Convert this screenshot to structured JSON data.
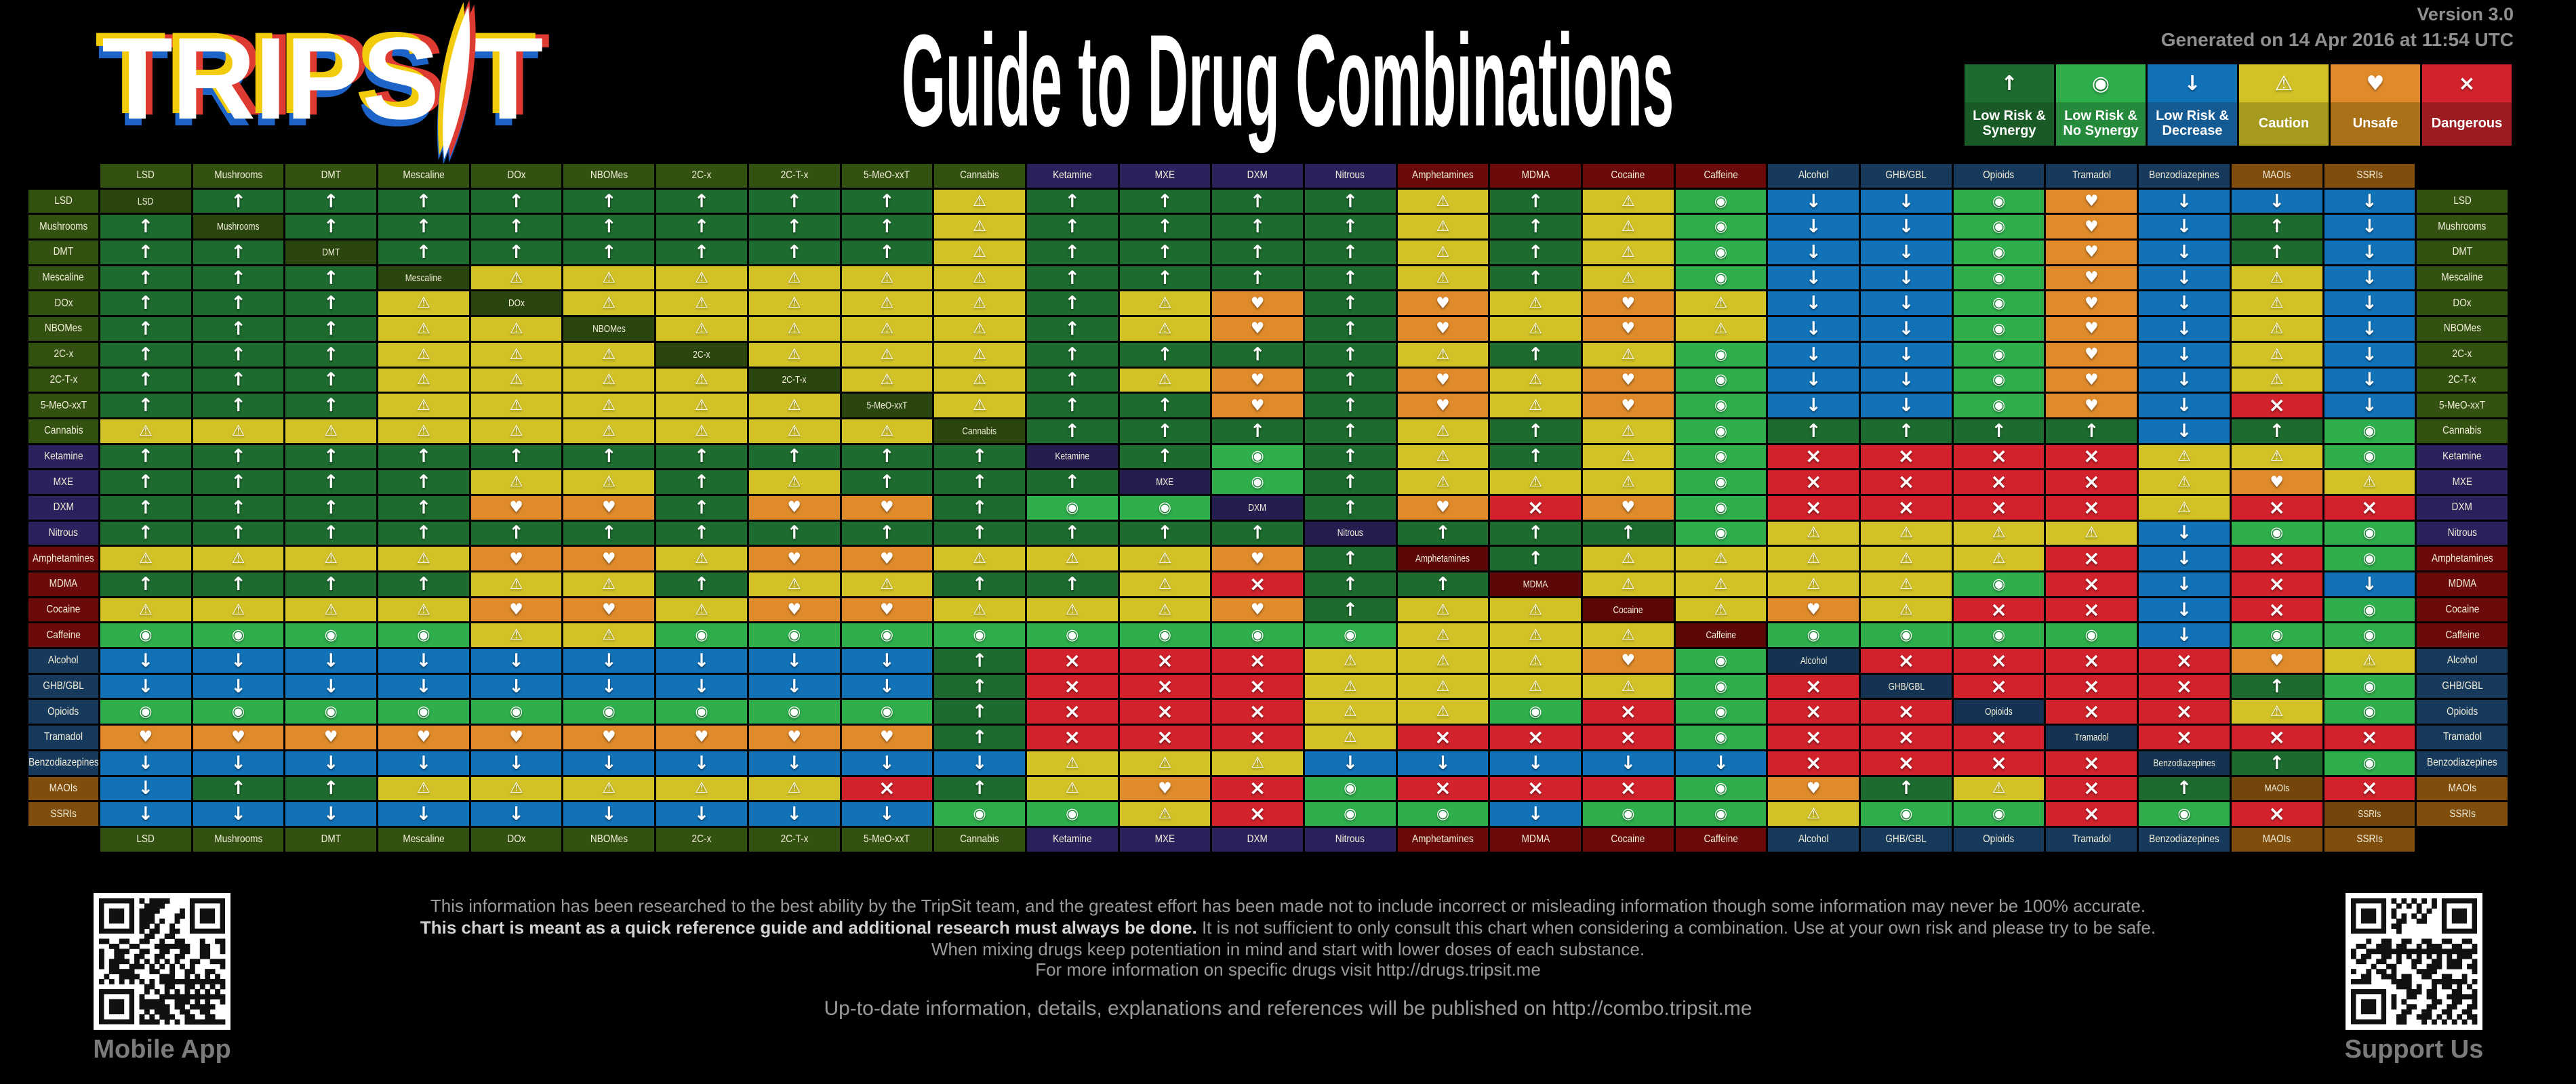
{
  "header": {
    "logo_left": "TRIPS",
    "logo_last": "T",
    "title": "Guide to Drug Combinations",
    "version": "Version 3.0",
    "generated": "Generated on 14 Apr 2016 at 11:54 UTC"
  },
  "statuses": {
    "S": {
      "name": "Low Risk & Synergy",
      "symbol": "↑",
      "color": "#1E6B2F",
      "legend_label_bg": "#1A5A27"
    },
    "N": {
      "name": "Low Risk & No Synergy",
      "symbol": "◉",
      "color": "#2FAE4C",
      "legend_label_bg": "#268A3C"
    },
    "D": {
      "name": "Low Risk & Decrease",
      "symbol": "↓",
      "color": "#1272B8",
      "legend_label_bg": "#155B93"
    },
    "C": {
      "name": "Caution",
      "symbol": "⚠",
      "color": "#D2C228",
      "legend_label_bg": "#A79B1F"
    },
    "U": {
      "name": "Unsafe",
      "symbol": "♥",
      "color": "#DF8A2B",
      "legend_label_bg": "#AA7119"
    },
    "X": {
      "name": "Dangerous",
      "symbol": "×",
      "color": "#D2232D",
      "legend_label_bg": "#9C1C22"
    }
  },
  "category_colors": {
    "psy": {
      "header": "#335110",
      "self": "#2A450E"
    },
    "dis": {
      "header": "#2B215C",
      "self": "#251C4F"
    },
    "stim": {
      "header": "#6B0A0B",
      "self": "#5C0708"
    },
    "dep": {
      "header": "#173A5C",
      "self": "#143352"
    },
    "ser": {
      "header": "#7F4D0C",
      "self": "#74460B"
    }
  },
  "chart_data": {
    "type": "heatmap",
    "title": "Guide to Drug Combinations",
    "legend_order": [
      "S",
      "N",
      "D",
      "C",
      "U",
      "X"
    ],
    "cell_codes": {
      "S": "Low Risk & Synergy",
      "N": "Low Risk & No Synergy",
      "D": "Low Risk & Decrease",
      "C": "Caution",
      "U": "Unsafe",
      "X": "Dangerous",
      "=": "self"
    },
    "drugs": [
      "LSD",
      "Mushrooms",
      "DMT",
      "Mescaline",
      "DOx",
      "NBOMes",
      "2C-x",
      "2C-T-x",
      "5-MeO-xxT",
      "Cannabis",
      "Ketamine",
      "MXE",
      "DXM",
      "Nitrous",
      "Amphetamines",
      "MDMA",
      "Cocaine",
      "Caffeine",
      "Alcohol",
      "GHB/GBL",
      "Opioids",
      "Tramadol",
      "Benzodiazepines",
      "MAOIs",
      "SSRIs"
    ],
    "category_by_drug": [
      "psy",
      "psy",
      "psy",
      "psy",
      "psy",
      "psy",
      "psy",
      "psy",
      "psy",
      "psy",
      "dis",
      "dis",
      "dis",
      "dis",
      "stim",
      "stim",
      "stim",
      "stim",
      "dep",
      "dep",
      "dep",
      "dep",
      "dep",
      "ser",
      "ser"
    ],
    "matrix": [
      "=SSSSSSSSCSSSSCSCNDDNUDDD",
      "S=SSSSSSSCSSSSCSCNDDNUDSD",
      "SS=SSSSSSCSSSSCSCNDDNUDSD",
      "SSS=CCCCCCSSSSCSCNDDNUDCD",
      "SSSC=CCCCCSCUSUCUCDDNUDCD",
      "SSSCC=CCCCSCUSUCUCDDNUDCD",
      "SSSCCC=CCCSSSSCSCNDDNUDCD",
      "SSSCCCC=CCSCUSUCUNDDNUDCD",
      "SSSCCCCC=CSSUSUCUNDDNUDXD",
      "CCCCCCCCC=SSSSCSCNSSSSDSN",
      "SSSSSSSSSS=SNSCSCNXXXXCCN",
      "SSSSCCSCSSS=NSCCCNXXXXCUC",
      "SSSSUUSUUSNN=SUXUNXXXXCXX",
      "SSSSSSSSSSSSS=SSSNCCCCDNN",
      "CCCCUUCUUCCCUS=SCCCCCXDXN",
      "SSSSCCSCCSSCXSS=CCCCNXDXD",
      "CCCCUUCUUCCCUSCC=CUCXXDXN",
      "NNNNCCNNNNNNNNCCC=NNNNDNN",
      "DDDDDDDDDSXXXCCCUN=XXXXUC",
      "DDDDDDDDDSXXXCCCCNX=XXXSN",
      "NNNNNNNNNSXXXCCNXNXX=XXCN",
      "UUUUUUUUUSXXXCXXXNXXX=XXX",
      "DDDDDDDDDDCCCDDDDDXXXX=SN",
      "DSSCCCCCXSCUXNXXXNUSCXS=X",
      "DDDDDDDDDNNCXNNDNNCNNXNX="
    ]
  },
  "footer": {
    "line1": "This information has been researched to the best ability by the TripSit team, and the greatest effort has been made not to include incorrect or misleading information though some information may never be 100% accurate.",
    "line2_bold": "This chart is meant as a quick reference guide and additional research must always be done.",
    "line2_rest": " It is not sufficient to only consult this chart when considering a combination. Use at your own risk and please try to be safe.",
    "line3": "When mixing drugs keep potentiation in mind and start with lower doses of each substance.",
    "line4": "For more information on specific drugs visit http://drugs.tripsit.me",
    "line5": "Up-to-date information, details, explanations and references will be published on http://combo.tripsit.me"
  },
  "qr": {
    "mobile_label": "Mobile App",
    "support_label": "Support Us"
  }
}
